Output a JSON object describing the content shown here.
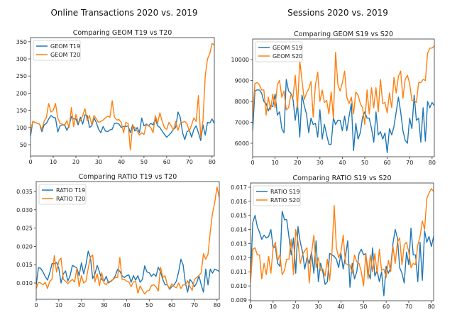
{
  "figure": {
    "column_titles": [
      "Online Transactions 2020 vs. 2019",
      "Sessions 2020 vs. 2019"
    ]
  },
  "colors": {
    "series_2019": "#1f77b4",
    "series_2020": "#ff7f0e"
  },
  "chart_data": [
    {
      "type": "line",
      "title": "Comparing GEOM T19 vs T20",
      "xlim": [
        0,
        81
      ],
      "ylim": [
        17,
        362
      ],
      "xticks": [
        0,
        10,
        20,
        30,
        40,
        50,
        60,
        70,
        80
      ],
      "yticks": [
        50,
        100,
        150,
        200,
        250,
        300,
        350
      ],
      "ytick_labels": [
        "50",
        "100",
        "150",
        "200",
        "250",
        "300",
        "350"
      ],
      "legend": "top-left",
      "series": [
        {
          "name": "GEOM T19",
          "values": [
            75,
            118,
            115,
            112,
            110,
            88,
            108,
            112,
            125,
            135,
            130,
            128,
            87,
            105,
            108,
            108,
            92,
            105,
            132,
            125,
            125,
            108,
            130,
            110,
            137,
            135,
            100,
            105,
            128,
            115,
            95,
            85,
            103,
            90,
            88,
            93,
            95,
            112,
            113,
            110,
            100,
            103,
            103,
            105,
            85,
            108,
            90,
            100,
            85,
            128,
            105,
            110,
            105,
            112,
            108,
            125,
            105,
            100,
            90,
            80,
            72,
            78,
            85,
            95,
            100,
            145,
            130,
            85,
            65,
            88,
            92,
            72,
            95,
            105,
            85,
            62,
            108,
            78,
            115,
            113,
            125,
            112
          ]
        },
        {
          "name": "GEOM T20",
          "values": [
            90,
            118,
            115,
            112,
            110,
            95,
            118,
            130,
            170,
            145,
            150,
            170,
            128,
            112,
            110,
            105,
            120,
            100,
            158,
            103,
            138,
            115,
            120,
            135,
            155,
            120,
            135,
            108,
            135,
            125,
            115,
            118,
            122,
            128,
            133,
            130,
            178,
            130,
            122,
            123,
            115,
            85,
            115,
            112,
            35,
            105,
            100,
            90,
            78,
            85,
            80,
            108,
            105,
            100,
            85,
            135,
            112,
            143,
            118,
            100,
            95,
            115,
            105,
            93,
            118,
            92,
            112,
            115,
            118,
            110,
            90,
            108,
            128,
            118,
            193,
            72,
            120,
            250,
            300,
            315,
            345,
            340
          ]
        }
      ]
    },
    {
      "type": "line",
      "title": "Comparing GEOM S19 vs S20",
      "xlim": [
        0,
        81
      ],
      "ylim": [
        5356,
        10983
      ],
      "xticks": [
        0,
        10,
        20,
        30,
        40,
        50,
        60,
        70,
        80
      ],
      "yticks": [
        6000,
        7000,
        8000,
        9000,
        10000
      ],
      "ytick_labels": [
        "6000",
        "7000",
        "8000",
        "9000",
        "10000"
      ],
      "legend": "top-left",
      "series": [
        {
          "name": "GEOM S19",
          "values": [
            6600,
            8500,
            8550,
            8550,
            8400,
            8000,
            7900,
            7550,
            7800,
            7750,
            8350,
            7350,
            7500,
            6700,
            6500,
            9050,
            8500,
            8400,
            8100,
            7100,
            7900,
            6300,
            8300,
            7800,
            7400,
            6500,
            7200,
            6900,
            6950,
            6300,
            7600,
            6200,
            6900,
            6400,
            5950,
            5950,
            7200,
            6900,
            7100,
            7100,
            6600,
            7300,
            6600,
            7300,
            7900,
            5650,
            6950,
            6200,
            6500,
            7250,
            7500,
            7200,
            7200,
            6700,
            6050,
            7500,
            6400,
            6550,
            6200,
            6500,
            5550,
            6700,
            6400,
            6800,
            7500,
            8200,
            7500,
            6600,
            6150,
            6000,
            7200,
            6700,
            8300,
            7100,
            7200,
            6050,
            7700,
            6100,
            8000,
            7700,
            7950,
            7800
          ]
        },
        {
          "name": "GEOM S20",
          "values": [
            7300,
            8850,
            8900,
            8800,
            8550,
            8550,
            7350,
            8200,
            7600,
            8350,
            7700,
            8800,
            9000,
            8200,
            8500,
            7600,
            7700,
            8300,
            8200,
            9250,
            7700,
            9950,
            9000,
            8100,
            8400,
            8600,
            8950,
            7250,
            8800,
            9400,
            8000,
            8550,
            7950,
            8050,
            7400,
            8450,
            7200,
            10350,
            8800,
            8500,
            8900,
            9450,
            8200,
            7900,
            8200,
            7400,
            8450,
            8300,
            7900,
            7700,
            6900,
            8550,
            7400,
            8650,
            7700,
            8650,
            7500,
            9050,
            7900,
            7950,
            7450,
            8400,
            7700,
            9150,
            8400,
            9200,
            9450,
            8150,
            9050,
            9250,
            8850,
            8050,
            8050,
            7950,
            8900,
            8900,
            9050,
            9000,
            10300,
            10550,
            10550,
            10650
          ]
        }
      ]
    },
    {
      "type": "line",
      "title": "Comparing RATIO T19 vs T20",
      "xlim": [
        0,
        81
      ],
      "ylim": [
        0.00555,
        0.0377
      ],
      "xticks": [
        0,
        10,
        20,
        30,
        40,
        50,
        60,
        70,
        80
      ],
      "yticks": [
        0.01,
        0.015,
        0.02,
        0.025,
        0.03,
        0.035
      ],
      "ytick_labels": [
        "0.010",
        "0.015",
        "0.020",
        "0.025",
        "0.030",
        "0.035"
      ],
      "legend": "top-left",
      "series": [
        {
          "name": "RATIO T19",
          "values": [
            0.0095,
            0.0142,
            0.014,
            0.013,
            0.0118,
            0.0108,
            0.0128,
            0.0153,
            0.0153,
            0.0156,
            0.014,
            0.01,
            0.0125,
            0.0133,
            0.0105,
            0.012,
            0.0148,
            0.0145,
            0.0141,
            0.012,
            0.0155,
            0.0125,
            0.015,
            0.0187,
            0.017,
            0.0112,
            0.0125,
            0.0148,
            0.013,
            0.011,
            0.0105,
            0.0118,
            0.01,
            0.0105,
            0.011,
            0.012,
            0.0137,
            0.0132,
            0.012,
            0.0115,
            0.012,
            0.0122,
            0.0102,
            0.012,
            0.0108,
            0.012,
            0.0102,
            0.011,
            0.0147,
            0.013,
            0.0128,
            0.0118,
            0.0125,
            0.0118,
            0.0143,
            0.013,
            0.011,
            0.0095,
            0.0095,
            0.0083,
            0.009,
            0.0095,
            0.0105,
            0.013,
            0.0165,
            0.015,
            0.01,
            0.0075,
            0.011,
            0.0102,
            0.009,
            0.01,
            0.012,
            0.0095,
            0.0075,
            0.0138,
            0.0095,
            0.0138,
            0.0127,
            0.0138,
            0.0135,
            0.0132
          ]
        },
        {
          "name": "RATIO T20",
          "values": [
            0.0085,
            0.0102,
            0.01,
            0.0095,
            0.0102,
            0.0085,
            0.0105,
            0.011,
            0.0175,
            0.013,
            0.016,
            0.0168,
            0.011,
            0.0105,
            0.0098,
            0.0105,
            0.011,
            0.0103,
            0.014,
            0.009,
            0.012,
            0.01,
            0.0105,
            0.014,
            0.017,
            0.0177,
            0.0103,
            0.0125,
            0.0093,
            0.0128,
            0.01,
            0.0095,
            0.0105,
            0.0103,
            0.011,
            0.0115,
            0.0115,
            0.017,
            0.011,
            0.011,
            0.0105,
            0.0103,
            0.009,
            0.0103,
            0.0105,
            0.0072,
            0.0092,
            0.008,
            0.007,
            0.0078,
            0.008,
            0.0093,
            0.0095,
            0.009,
            0.0078,
            0.0143,
            0.0115,
            0.012,
            0.0095,
            0.0085,
            0.0098,
            0.009,
            0.0087,
            0.01,
            0.0085,
            0.0095,
            0.0095,
            0.0106,
            0.009,
            0.008,
            0.011,
            0.0115,
            0.012,
            0.0128,
            0.018,
            0.0165,
            0.0178,
            0.024,
            0.029,
            0.032,
            0.0362,
            0.0333
          ]
        }
      ]
    },
    {
      "type": "line",
      "title": "Comparing RATIO S19 vs S20",
      "xlim": [
        0,
        81
      ],
      "ylim": [
        0.00895,
        0.0173
      ],
      "xticks": [
        0,
        10,
        20,
        30,
        40,
        50,
        60,
        70,
        80
      ],
      "yticks": [
        0.009,
        0.01,
        0.011,
        0.012,
        0.013,
        0.014,
        0.015,
        0.016,
        0.017
      ],
      "ytick_labels": [
        "0.009",
        "0.010",
        "0.011",
        "0.012",
        "0.013",
        "0.014",
        "0.015",
        "0.016",
        "0.017"
      ],
      "legend": "top-left",
      "series": [
        {
          "name": "RATIO S19",
          "values": [
            0.0105,
            0.0145,
            0.015,
            0.0142,
            0.0138,
            0.0133,
            0.0136,
            0.0134,
            0.0135,
            0.014,
            0.0127,
            0.0128,
            0.0116,
            0.0114,
            0.0153,
            0.0147,
            0.0147,
            0.0135,
            0.0122,
            0.0134,
            0.0109,
            0.0142,
            0.0131,
            0.0124,
            0.0112,
            0.012,
            0.0116,
            0.0124,
            0.0109,
            0.0132,
            0.0103,
            0.0116,
            0.011,
            0.0101,
            0.0103,
            0.0123,
            0.0122,
            0.0121,
            0.0119,
            0.0113,
            0.0123,
            0.0112,
            0.0121,
            0.0132,
            0.0099,
            0.0116,
            0.0105,
            0.011,
            0.0123,
            0.0126,
            0.0122,
            0.0123,
            0.011,
            0.0105,
            0.0127,
            0.0107,
            0.0111,
            0.0103,
            0.011,
            0.0093,
            0.0114,
            0.0109,
            0.0113,
            0.013,
            0.014,
            0.0134,
            0.0113,
            0.0109,
            0.0102,
            0.0124,
            0.0115,
            0.0141,
            0.0122,
            0.0122,
            0.0103,
            0.0131,
            0.0104,
            0.0139,
            0.0131,
            0.0135,
            0.0128,
            0.0135
          ]
        },
        {
          "name": "RATIO S20",
          "values": [
            0.0102,
            0.0126,
            0.0127,
            0.0122,
            0.0122,
            0.0105,
            0.0116,
            0.0108,
            0.0121,
            0.0109,
            0.0127,
            0.0131,
            0.0118,
            0.0122,
            0.0108,
            0.0111,
            0.0119,
            0.0119,
            0.0133,
            0.0108,
            0.014,
            0.0131,
            0.0116,
            0.0122,
            0.0125,
            0.0127,
            0.0102,
            0.0123,
            0.0136,
            0.0113,
            0.012,
            0.0111,
            0.0112,
            0.0107,
            0.0119,
            0.0104,
            0.0123,
            0.0157,
            0.0127,
            0.012,
            0.0124,
            0.0136,
            0.0116,
            0.0115,
            0.0115,
            0.0109,
            0.0122,
            0.0117,
            0.0116,
            0.011,
            0.01,
            0.0123,
            0.0105,
            0.0122,
            0.011,
            0.0123,
            0.0109,
            0.0126,
            0.0111,
            0.0112,
            0.0106,
            0.0118,
            0.011,
            0.0128,
            0.0116,
            0.0131,
            0.0134,
            0.0115,
            0.0129,
            0.0131,
            0.0124,
            0.0113,
            0.0116,
            0.0115,
            0.0129,
            0.0135,
            0.0146,
            0.014,
            0.0162,
            0.0166,
            0.0169,
            0.0167
          ]
        }
      ]
    }
  ]
}
